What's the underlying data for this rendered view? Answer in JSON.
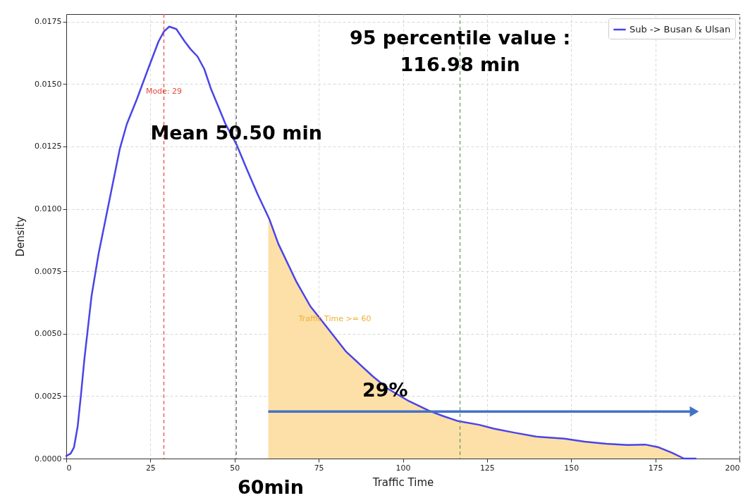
{
  "chart_data": {
    "type": "line",
    "xlabel": "Traffic Time",
    "ylabel": "Density",
    "x": [
      0,
      1.3,
      2.3,
      3.4,
      4.4,
      5.4,
      7.5,
      9.6,
      11.7,
      13.8,
      15.9,
      18,
      21,
      24.3,
      27.4,
      29,
      30.6,
      32.7,
      35.2,
      36.9,
      39,
      41,
      43,
      47.3,
      50.5,
      53.6,
      56.8,
      60.3,
      63,
      68.3,
      72.5,
      76.6,
      83,
      87,
      91,
      95.5,
      101.8,
      108,
      112,
      116.4,
      122.7,
      127,
      133,
      139.5,
      148,
      154,
      160.4,
      166.7,
      172,
      176,
      180,
      183.5,
      187
    ],
    "series": [
      {
        "name": "Sub -> Busan & Ulsan",
        "color": "#4a44e8",
        "values": [
          0.0001,
          0.0002,
          0.00045,
          0.0013,
          0.0026,
          0.004,
          0.0065,
          0.0082,
          0.0096,
          0.011,
          0.0124,
          0.0134,
          0.0144,
          0.0156,
          0.0167,
          0.0171,
          0.0173,
          0.0172,
          0.0167,
          0.0164,
          0.0161,
          0.0156,
          0.0148,
          0.0134,
          0.0126,
          0.0116,
          0.0106,
          0.0096,
          0.0086,
          0.0071,
          0.0061,
          0.0054,
          0.0043,
          0.0038,
          0.0033,
          0.0028,
          0.0023,
          0.0019,
          0.0017,
          0.0015,
          0.00135,
          0.0012,
          0.00104,
          0.00088,
          0.0008,
          0.00068,
          0.00059,
          0.00054,
          0.00056,
          0.00045,
          0.00023,
          0,
          0
        ]
      },
      {
        "type": "area",
        "color": "#fde0a8",
        "x": [
          60,
          60.3,
          63,
          68.3,
          72.5,
          76.6,
          83,
          87,
          91,
          95.5,
          101.8,
          108,
          112,
          116.4,
          122.7,
          127,
          133,
          139.5,
          148,
          154,
          160.4,
          166.7,
          172,
          176,
          180,
          183.5,
          187
        ],
        "values": [
          0.0095,
          0.0096,
          0.0086,
          0.0071,
          0.0061,
          0.0054,
          0.0043,
          0.0038,
          0.0033,
          0.0028,
          0.0023,
          0.0019,
          0.0017,
          0.0015,
          0.00135,
          0.0012,
          0.00104,
          0.00088,
          0.0008,
          0.00068,
          0.00059,
          0.00054,
          0.00056,
          0.00045,
          0.00023,
          0,
          0
        ]
      }
    ],
    "ref_lines": [
      {
        "axis": "x",
        "value": 29,
        "label": "Mode: 29",
        "color": "#e8473f",
        "line_style": "dashed"
      },
      {
        "axis": "x",
        "value": 50.5,
        "label": "Mean 50.50 min",
        "color": "#555555",
        "line_style": "dashed"
      },
      {
        "axis": "x",
        "value": 116.98,
        "label": "95 percentile value :\n116.98 min",
        "color": "#5a9a5a",
        "line_style": "dashed"
      }
    ],
    "annotations": [
      "Traffic Time >= 60",
      {
        "text": "29%",
        "x": 94.7,
        "y": 0.0027
      },
      "60min"
    ],
    "xlim": [
      0,
      200
    ],
    "xticks": [
      0,
      25,
      50,
      75,
      100,
      125,
      150,
      175,
      200
    ],
    "ylim": [
      0,
      0.0178
    ],
    "yticks": [
      {
        "value": 0,
        "label": "0.0000"
      },
      0.0025,
      {
        "value": 0.005,
        "label": "0.0050"
      },
      0.0075,
      {
        "value": 0.01,
        "label": "0.0100"
      },
      0.0125,
      {
        "value": 0.015,
        "label": "0.0150"
      },
      0.0175
    ],
    "grid": true,
    "legend": "top right",
    "line_style": "solid",
    "marker": "none"
  }
}
